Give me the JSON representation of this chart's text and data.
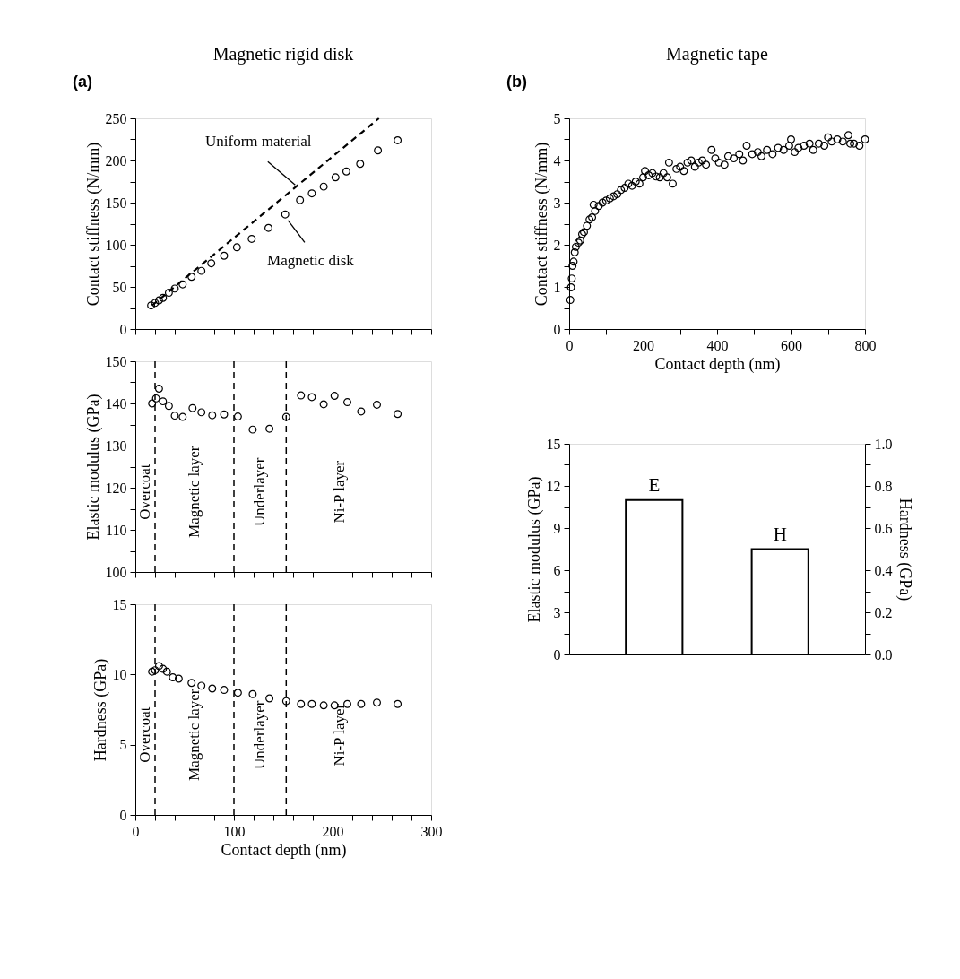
{
  "chart_data": [
    {
      "type": "scatter",
      "title": "Magnetic rigid disk",
      "ylabel": "Contact stiffness (N/mm)",
      "annotations": [
        "(a)",
        {
          "text": "Uniform material",
          "x": 163,
          "y": 170
        },
        {
          "text": "Magnetic disk",
          "x": 154,
          "y": 130
        }
      ],
      "xlim": [
        0,
        300
      ],
      "xticks": [
        0,
        {
          "value": 20,
          "label": null
        },
        {
          "value": 40,
          "label": null
        },
        {
          "value": 60,
          "label": null
        },
        {
          "value": 80,
          "label": null
        },
        100,
        {
          "value": 120,
          "label": null
        },
        {
          "value": 140,
          "label": null
        },
        {
          "value": 160,
          "label": null
        },
        {
          "value": 180,
          "label": null
        },
        200,
        {
          "value": 220,
          "label": null
        },
        {
          "value": 240,
          "label": null
        },
        {
          "value": 260,
          "label": null
        },
        {
          "value": 280,
          "label": null
        },
        300
      ],
      "ylim": [
        0,
        250
      ],
      "yticks": [
        0,
        {
          "value": 25,
          "label": null
        },
        50,
        {
          "value": 75,
          "label": null
        },
        100,
        {
          "value": 125,
          "label": null
        },
        150,
        {
          "value": 175,
          "label": null
        },
        200,
        {
          "value": 225,
          "label": null
        },
        250
      ],
      "tick_labels": "y",
      "series": [
        {
          "type": "line",
          "line_style": "dashed",
          "color": "#000000",
          "x": [
            17,
            247
          ],
          "values": [
            28,
            250
          ]
        },
        {
          "type": "scatter",
          "marker": "circle",
          "color": "#000000",
          "x": [
            16,
            20,
            24,
            28,
            34,
            40,
            48,
            57,
            67,
            77,
            90,
            103,
            118,
            135,
            152,
            167,
            179,
            191,
            203,
            214,
            228,
            246,
            266
          ],
          "values": [
            28,
            31,
            34,
            37,
            43,
            48,
            53,
            62,
            69,
            78,
            87,
            97,
            107,
            120,
            136,
            153,
            161,
            169,
            180,
            187,
            196,
            212,
            224
          ]
        }
      ]
    },
    {
      "type": "scatter",
      "ylabel": "Elastic modulus (GPa)",
      "annotations": [
        "Overcoat",
        "Magnetic layer",
        "Underlayer",
        "Ni-P layer"
      ],
      "xlim": [
        0,
        300
      ],
      "xticks": [
        0,
        {
          "value": 20,
          "label": null
        },
        {
          "value": 40,
          "label": null
        },
        {
          "value": 60,
          "label": null
        },
        {
          "value": 80,
          "label": null
        },
        100,
        {
          "value": 120,
          "label": null
        },
        {
          "value": 140,
          "label": null
        },
        {
          "value": 160,
          "label": null
        },
        {
          "value": 180,
          "label": null
        },
        200,
        {
          "value": 220,
          "label": null
        },
        {
          "value": 240,
          "label": null
        },
        {
          "value": 260,
          "label": null
        },
        {
          "value": 280,
          "label": null
        },
        300
      ],
      "ylim": [
        100,
        150
      ],
      "yticks": [
        100,
        {
          "value": 105,
          "label": null
        },
        110,
        {
          "value": 115,
          "label": null
        },
        120,
        {
          "value": 125,
          "label": null
        },
        130,
        {
          "value": 135,
          "label": null
        },
        140,
        {
          "value": 145,
          "label": null
        },
        150
      ],
      "tick_labels": "y",
      "marker": "circle",
      "ref_lines": [
        {
          "axis": "x",
          "value": 20,
          "line_style": "dashed",
          "color": "#000000"
        },
        {
          "axis": "x",
          "value": 100,
          "line_style": "dashed",
          "color": "#000000"
        },
        {
          "axis": "x",
          "value": 153,
          "line_style": "dashed",
          "color": "#000000"
        }
      ],
      "series": [
        {
          "color": "#000000",
          "x": [
            17,
            21,
            24,
            28,
            34,
            40,
            48,
            58,
            67,
            78,
            90,
            104,
            119,
            136,
            153,
            168,
            179,
            191,
            202,
            215,
            229,
            245,
            266
          ],
          "values": [
            140.0,
            141.2,
            143.5,
            140.5,
            139.4,
            137.1,
            136.8,
            138.9,
            137.9,
            137.2,
            137.4,
            136.9,
            133.8,
            134.0,
            136.8,
            141.9,
            141.5,
            139.8,
            141.8,
            140.3,
            138.1,
            139.7,
            137.5
          ]
        }
      ]
    },
    {
      "type": "scatter",
      "xlabel": "Contact depth (nm)",
      "ylabel": "Hardness (GPa)",
      "annotations": [
        "Overcoat",
        "Magnetic layer",
        "Underlayer",
        "Ni-P layer"
      ],
      "xlim": [
        0,
        300
      ],
      "xticks": [
        0,
        {
          "value": 20,
          "label": null
        },
        {
          "value": 40,
          "label": null
        },
        {
          "value": 60,
          "label": null
        },
        {
          "value": 80,
          "label": null
        },
        100,
        {
          "value": 120,
          "label": null
        },
        {
          "value": 140,
          "label": null
        },
        {
          "value": 160,
          "label": null
        },
        {
          "value": 180,
          "label": null
        },
        200,
        {
          "value": 220,
          "label": null
        },
        {
          "value": 240,
          "label": null
        },
        {
          "value": 260,
          "label": null
        },
        {
          "value": 280,
          "label": null
        },
        300
      ],
      "ylim": [
        0,
        15
      ],
      "yticks": [
        0,
        5,
        10,
        15
      ],
      "marker": "circle",
      "ref_lines": [
        {
          "axis": "x",
          "value": 20,
          "line_style": "dashed",
          "color": "#000000"
        },
        {
          "axis": "x",
          "value": 100,
          "line_style": "dashed",
          "color": "#000000"
        },
        {
          "axis": "x",
          "value": 153,
          "line_style": "dashed",
          "color": "#000000"
        }
      ],
      "series": [
        {
          "color": "#000000",
          "x": [
            17,
            20,
            24,
            28,
            32,
            38,
            44,
            57,
            67,
            78,
            90,
            104,
            119,
            136,
            153,
            168,
            179,
            191,
            202,
            215,
            229,
            245,
            266
          ],
          "values": [
            10.2,
            10.3,
            10.6,
            10.4,
            10.2,
            9.8,
            9.7,
            9.4,
            9.2,
            9.0,
            8.9,
            8.7,
            8.6,
            8.3,
            8.1,
            7.9,
            7.9,
            7.8,
            7.8,
            7.9,
            7.9,
            8.0,
            7.9
          ]
        }
      ]
    },
    {
      "type": "scatter",
      "title": "Magnetic tape",
      "xlabel": "Contact depth (nm)",
      "ylabel": "Contact stiffness (N/mm)",
      "annotations": [
        "(b)"
      ],
      "xlim": [
        0,
        800
      ],
      "xticks": [
        0,
        {
          "value": 100,
          "label": null
        },
        200,
        {
          "value": 300,
          "label": null
        },
        400,
        {
          "value": 500,
          "label": null
        },
        600,
        {
          "value": 700,
          "label": null
        },
        800
      ],
      "ylim": [
        0,
        5
      ],
      "yticks": [
        0,
        {
          "value": 0.5,
          "label": null
        },
        1,
        {
          "value": 1.5,
          "label": null
        },
        2,
        {
          "value": 2.5,
          "label": null
        },
        3,
        {
          "value": 3.5,
          "label": null
        },
        4,
        {
          "value": 4.5,
          "label": null
        },
        5
      ],
      "marker": "circle",
      "series": [
        {
          "color": "#000000",
          "x": [
            3,
            5,
            7,
            9,
            12,
            15,
            18,
            25,
            30,
            35,
            40,
            48,
            55,
            62,
            66,
            70,
            80,
            90,
            100,
            110,
            120,
            130,
            140,
            150,
            160,
            170,
            180,
            190,
            200,
            205,
            215,
            225,
            235,
            245,
            255,
            265,
            270,
            280,
            290,
            300,
            310,
            320,
            330,
            340,
            350,
            360,
            370,
            385,
            395,
            405,
            420,
            430,
            445,
            460,
            470,
            480,
            495,
            510,
            520,
            535,
            550,
            565,
            580,
            595,
            600,
            610,
            620,
            635,
            650,
            660,
            675,
            690,
            700,
            710,
            725,
            740,
            755,
            760,
            770,
            785,
            800
          ],
          "values": [
            0.69,
            0.99,
            1.2,
            1.5,
            1.6,
            1.82,
            1.95,
            2.05,
            2.1,
            2.25,
            2.3,
            2.45,
            2.6,
            2.65,
            2.95,
            2.8,
            2.92,
            3.0,
            3.05,
            3.1,
            3.15,
            3.2,
            3.3,
            3.35,
            3.45,
            3.4,
            3.5,
            3.45,
            3.6,
            3.75,
            3.65,
            3.7,
            3.62,
            3.6,
            3.7,
            3.6,
            3.95,
            3.45,
            3.8,
            3.85,
            3.75,
            3.95,
            4.0,
            3.85,
            3.95,
            4.0,
            3.9,
            4.25,
            4.05,
            3.95,
            3.9,
            4.1,
            4.05,
            4.15,
            4.0,
            4.35,
            4.15,
            4.2,
            4.1,
            4.25,
            4.15,
            4.3,
            4.25,
            4.35,
            4.5,
            4.2,
            4.3,
            4.35,
            4.4,
            4.25,
            4.4,
            4.35,
            4.55,
            4.45,
            4.5,
            4.45,
            4.6,
            4.4,
            4.4,
            4.35,
            4.5
          ]
        }
      ]
    },
    {
      "type": "bar",
      "ylabel": "Elastic modulus (GPa)",
      "y2label": "Hardness (GPa)",
      "categories": [
        null,
        null
      ],
      "ylim": [
        0,
        15
      ],
      "yticks": [
        0,
        {
          "value": 1.5,
          "label": null
        },
        3,
        {
          "value": 4.5,
          "label": null
        },
        6,
        {
          "value": 7.5,
          "label": null
        },
        9,
        {
          "value": 10.5,
          "label": null
        },
        12,
        {
          "value": 13.5,
          "label": null
        },
        15
      ],
      "y2lim": [
        0,
        1
      ],
      "y2ticks": [
        {
          "value": 0,
          "label": "0.0"
        },
        {
          "value": 0.1,
          "label": null
        },
        {
          "value": 0.2,
          "label": "0.2"
        },
        {
          "value": 0.3,
          "label": null
        },
        {
          "value": 0.4,
          "label": "0.4"
        },
        {
          "value": 0.5,
          "label": null
        },
        {
          "value": 0.6,
          "label": "0.6"
        },
        {
          "value": 0.7,
          "label": null
        },
        {
          "value": 0.8,
          "label": "0.8"
        },
        {
          "value": 0.9,
          "label": null
        },
        {
          "value": 1,
          "label": "1.0"
        }
      ],
      "series": [
        {
          "name": "E",
          "color": "#000000",
          "axis": "y",
          "values": [
            11.0,
            null
          ]
        },
        {
          "name": "H",
          "color": "#000000",
          "axis": "y2",
          "values": [
            null,
            0.5
          ]
        }
      ]
    }
  ]
}
